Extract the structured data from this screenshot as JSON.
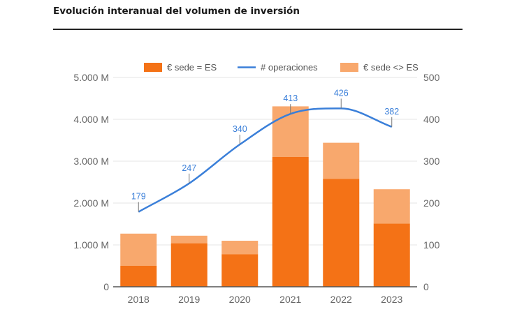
{
  "page": {
    "title": "Evolución interanual del volumen de inversión"
  },
  "chart_data": {
    "type": "bar",
    "stacked": true,
    "categories": [
      "2018",
      "2019",
      "2020",
      "2021",
      "2022",
      "2023"
    ],
    "series": [
      {
        "name": "€ sede = ES",
        "type": "bar",
        "axis": "left",
        "color": "#f47216",
        "values": [
          500,
          1040,
          780,
          3100,
          2580,
          1510
        ]
      },
      {
        "name": "€ sede <> ES",
        "type": "bar",
        "axis": "left",
        "color": "#f8a86d",
        "values": [
          770,
          180,
          320,
          1210,
          860,
          820
        ]
      },
      {
        "name": "# operaciones",
        "type": "line",
        "axis": "right",
        "color": "#3a7fd9",
        "values": [
          179,
          247,
          340,
          413,
          426,
          382
        ]
      }
    ],
    "legend_order": [
      "€ sede = ES",
      "# operaciones",
      "€ sede <> ES"
    ],
    "left_axis": {
      "ylim": [
        0,
        5000
      ],
      "ticks": [
        "0",
        "1.000 M",
        "2.000 M",
        "3.000 M",
        "4.000 M",
        "5.000 M"
      ]
    },
    "right_axis": {
      "ylim": [
        0,
        500
      ],
      "ticks": [
        "0",
        "100",
        "200",
        "300",
        "400",
        "500"
      ]
    },
    "grid": true,
    "legend_position": "top",
    "colors": {
      "grid": "#e4e4e4",
      "axis": "#555555",
      "tick_text": "#666666"
    }
  }
}
